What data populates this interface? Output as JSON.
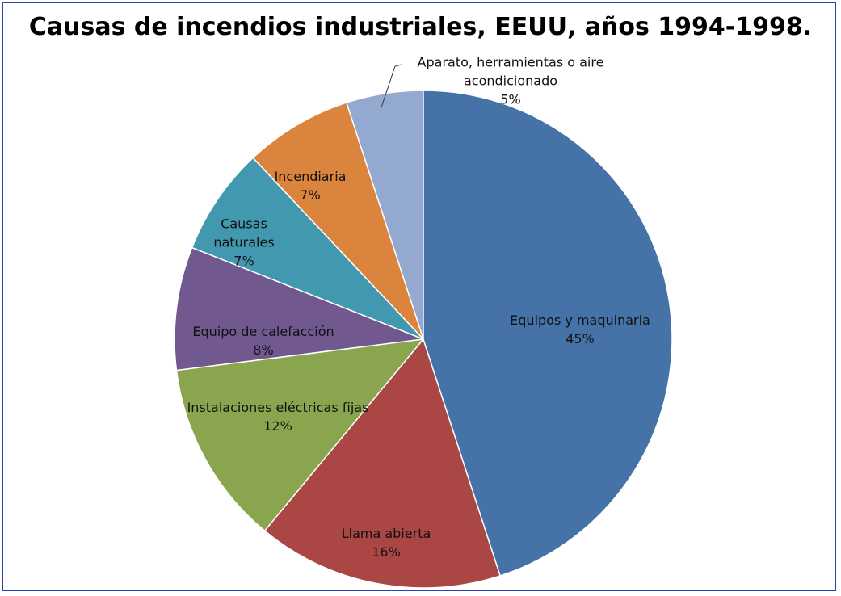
{
  "chart_data": {
    "type": "pie",
    "title": "Causas de incendios industriales, EEUU, años 1994-1998.",
    "categories": [
      "Equipos y maquinaria",
      "Llama abierta",
      "Instalaciones eléctricas fijas",
      "Equipo de calefacción",
      "Causas naturales",
      "Incendiaria",
      "Aparato, herramientas o aire acondicionado"
    ],
    "values": [
      45,
      16,
      12,
      8,
      7,
      7,
      5
    ],
    "value_labels": [
      "45%",
      "16%",
      "12%",
      "8%",
      "7%",
      "7%",
      "5%"
    ],
    "colors": [
      "#4572a7",
      "#aa4643",
      "#89a54e",
      "#71588f",
      "#4198af",
      "#db843d",
      "#93a9cf"
    ]
  }
}
